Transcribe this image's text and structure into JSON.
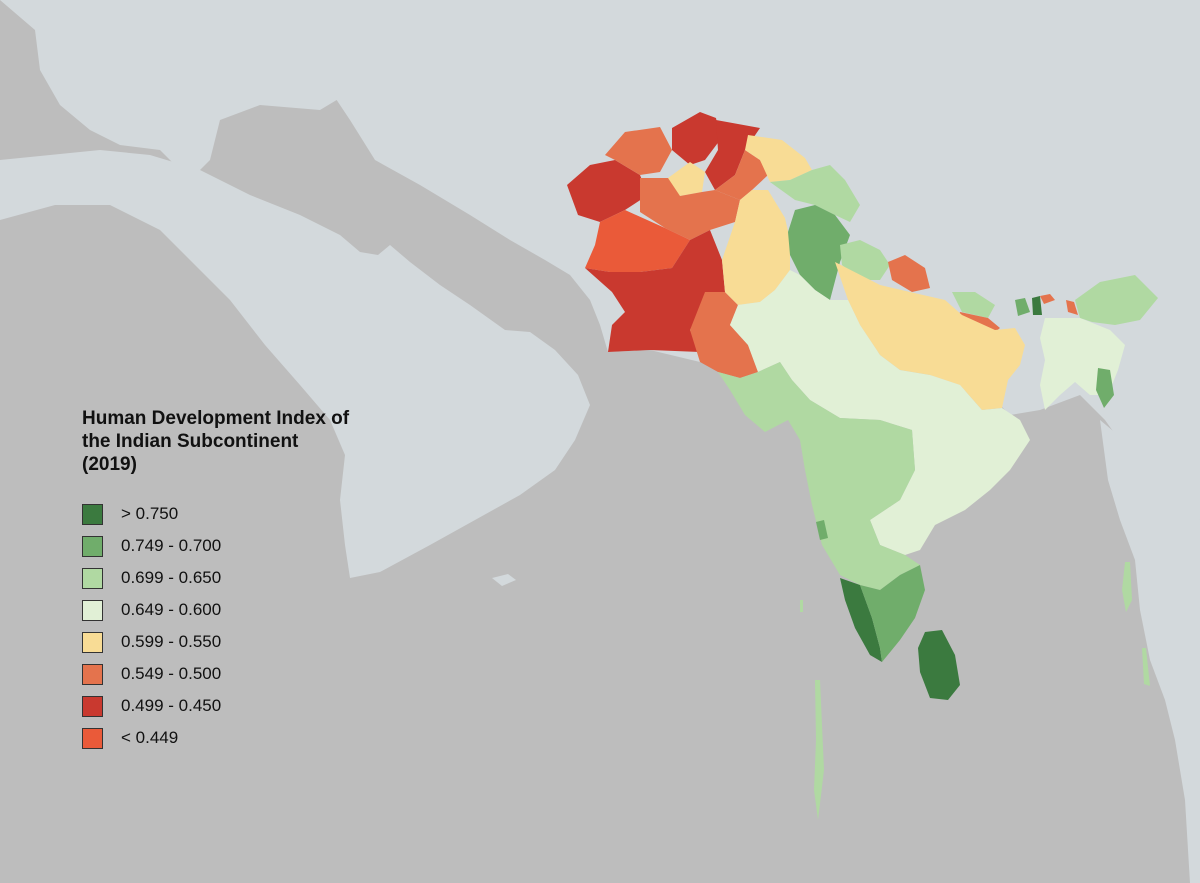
{
  "legend": {
    "title_lines": [
      "Human Development Index of",
      "the Indian Subcontinent",
      "(2019)"
    ],
    "items": [
      {
        "label": "> 0.750",
        "color": "#3b7a3f"
      },
      {
        "label": "0.749 - 0.700",
        "color": "#70ad6b"
      },
      {
        "label": "0.699 - 0.650",
        "color": "#b0d9a2"
      },
      {
        "label": "0.649 - 0.600",
        "color": "#e1f0d6"
      },
      {
        "label": "0.599 - 0.550",
        "color": "#f8dc95"
      },
      {
        "label": "0.549 - 0.500",
        "color": "#e4734d"
      },
      {
        "label": "0.499 - 0.450",
        "color": "#c9392f"
      },
      {
        "label": "< 0.449",
        "color": "#ea5a39"
      }
    ]
  },
  "map_colors": {
    "sea": "#bdbdbd",
    "land": "#d3d9dc"
  }
}
